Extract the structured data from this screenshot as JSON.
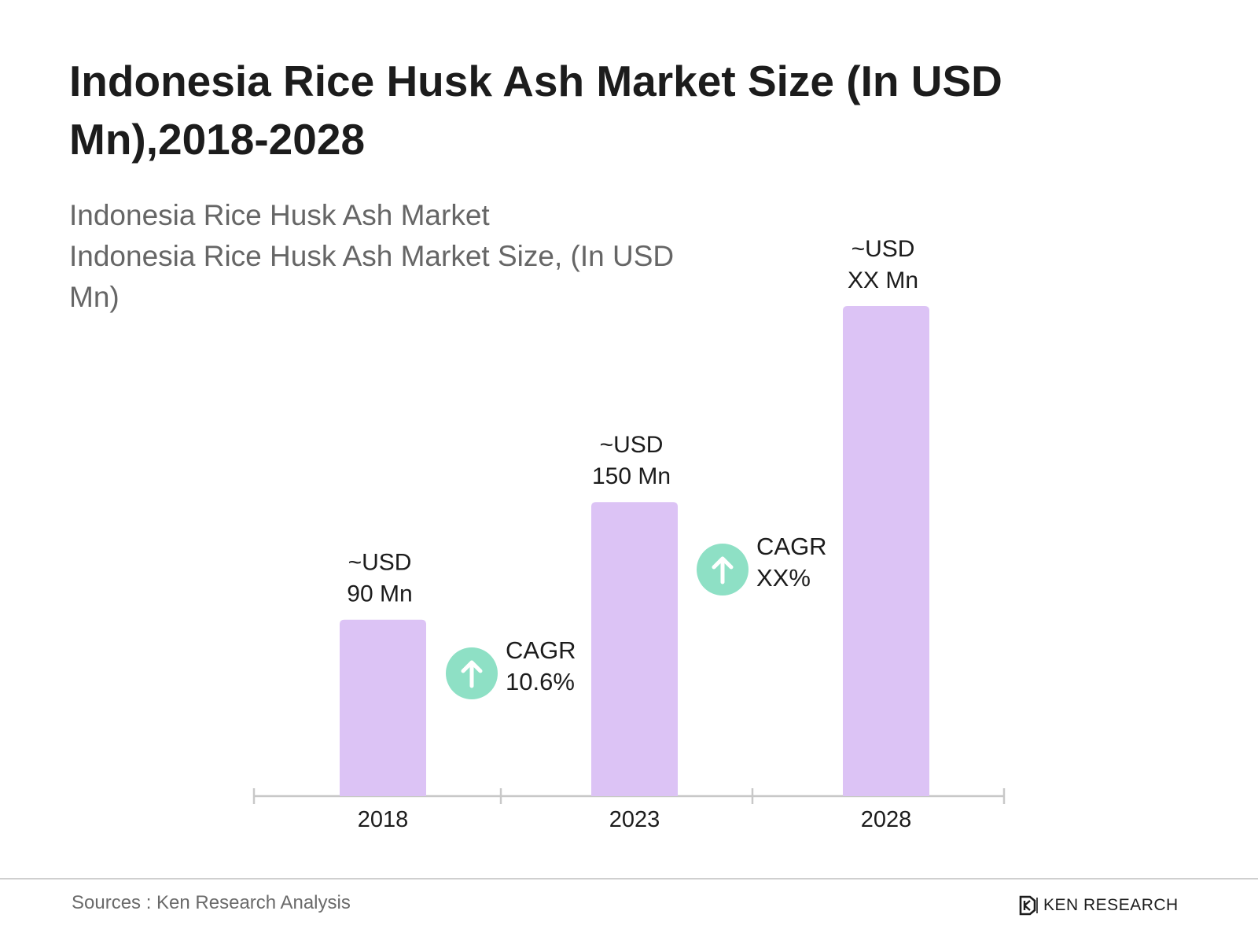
{
  "title": "Indonesia Rice Husk Ash Market Size (In USD Mn),2018-2028",
  "subtitle_line1": "Indonesia Rice Husk Ash Market",
  "subtitle_line2": "Indonesia Rice Husk Ash Market Size, (In USD Mn)",
  "source": "Sources : Ken Research Analysis",
  "brand": "KEN RESEARCH",
  "colors": {
    "bar": "#dcc3f5",
    "cagr_icon": "#8ee0c5",
    "axis": "#c8c8c8"
  },
  "chart_data": {
    "type": "bar",
    "categories": [
      "2018",
      "2023",
      "2028"
    ],
    "values": [
      90,
      150,
      250
    ],
    "data_labels": [
      [
        "~USD",
        "90 Mn"
      ],
      [
        "~USD",
        "150 Mn"
      ],
      [
        "~USD",
        "XX Mn"
      ]
    ],
    "annotations": [
      {
        "icon": "arrow-up-icon",
        "between": [
          "2018",
          "2023"
        ],
        "lines": [
          "CAGR",
          "10.6%"
        ]
      },
      {
        "icon": "arrow-up-icon",
        "between": [
          "2023",
          "2028"
        ],
        "lines": [
          "CAGR",
          "XX%"
        ]
      }
    ],
    "ylim": [
      0,
      250
    ],
    "grid": false,
    "legend": "none"
  }
}
